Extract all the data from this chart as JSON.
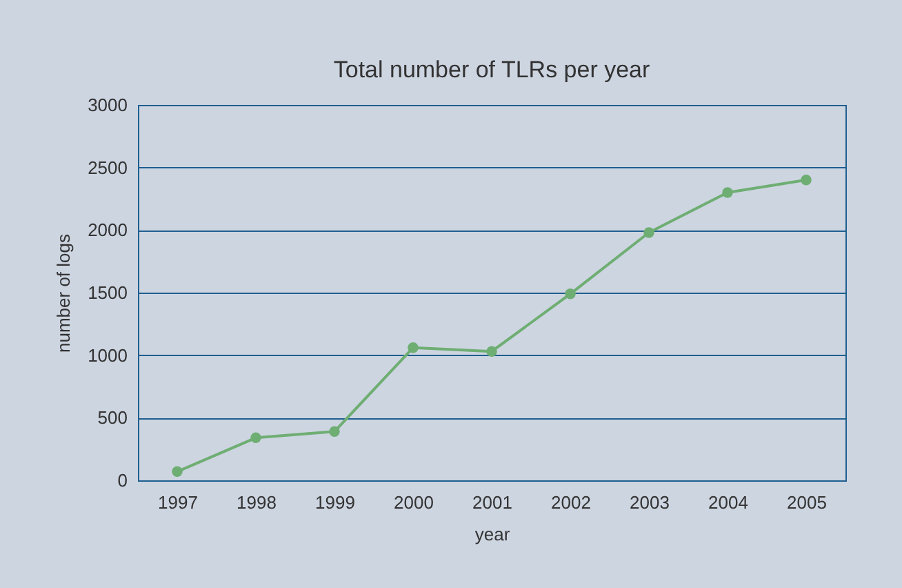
{
  "chart_data": {
    "type": "line",
    "title": "Total number of TLRs per year",
    "xlabel": "year",
    "ylabel": "number of logs",
    "categories": [
      "1997",
      "1998",
      "1999",
      "2000",
      "2001",
      "2002",
      "2003",
      "2004",
      "2005"
    ],
    "series": [
      {
        "color": "#6fae73",
        "values": [
          70,
          340,
          390,
          1060,
          1030,
          1490,
          1980,
          2300,
          2400
        ]
      }
    ],
    "ylim": [
      0,
      3000
    ],
    "yticks": [
      0,
      500,
      1000,
      1500,
      2000,
      2500,
      3000
    ],
    "grid": "y",
    "marker": "circle",
    "line_style": "solid"
  }
}
